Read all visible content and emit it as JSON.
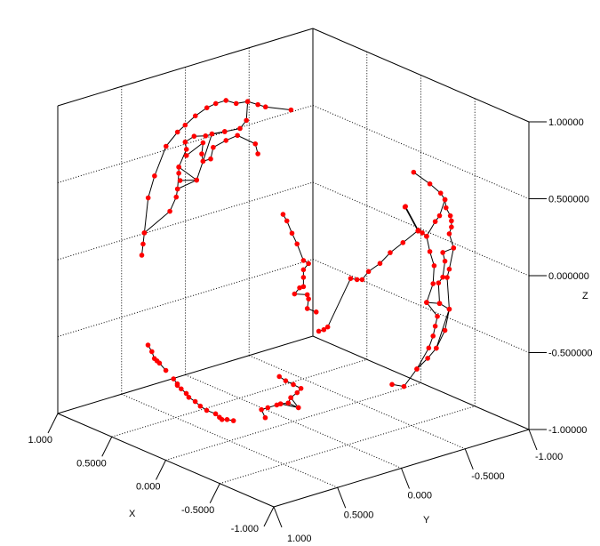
{
  "chart_data": {
    "type": "scatter",
    "projection": "3d",
    "marker_color": "#ff0000",
    "line_color": "#000000",
    "grid": true,
    "xlabel": "X",
    "ylabel": "Y",
    "zlabel": "Z",
    "xlim": [
      -1,
      1
    ],
    "ylim": [
      -1,
      1
    ],
    "zlim": [
      -1,
      1
    ],
    "x_ticks": [
      {
        "value": 1,
        "label": "1.000"
      },
      {
        "value": 0.5,
        "label": "0.5000"
      },
      {
        "value": 0,
        "label": "0.000"
      },
      {
        "value": -0.5,
        "label": "-0.5000"
      },
      {
        "value": -1,
        "label": "-1.000"
      }
    ],
    "y_ticks": [
      {
        "value": 1,
        "label": "1.000"
      },
      {
        "value": 0.5,
        "label": "0.5000"
      },
      {
        "value": 0,
        "label": "0.000"
      },
      {
        "value": -0.5,
        "label": "-0.5000"
      },
      {
        "value": -1,
        "label": "-1.000"
      }
    ],
    "z_ticks": [
      {
        "value": 1,
        "label": "1.00000"
      },
      {
        "value": 0.5,
        "label": "0.500000"
      },
      {
        "value": 0,
        "label": "0.000000"
      },
      {
        "value": -0.5,
        "label": "-0.500000"
      },
      {
        "value": -1,
        "label": "-1.00000"
      }
    ],
    "polylines": [
      [
        [
          0.6,
          0.68,
          0.07
        ],
        [
          0.6,
          0.67,
          0.14
        ],
        [
          0.6,
          0.66,
          0.21
        ],
        [
          0.6,
          0.63,
          0.43
        ],
        [
          0.6,
          0.58,
          0.56
        ],
        [
          0.6,
          0.49,
          0.73
        ],
        [
          0.6,
          0.4,
          0.8
        ],
        [
          0.6,
          0.34,
          0.83
        ],
        [
          0.6,
          0.26,
          0.87
        ],
        [
          0.6,
          0.17,
          0.9
        ],
        [
          0.6,
          0.1,
          0.91
        ],
        [
          0.6,
          0.02,
          0.91
        ],
        [
          0.6,
          -0.06,
          0.87
        ],
        [
          0.6,
          -0.15,
          0.86
        ],
        [
          0.6,
          -0.23,
          0.82
        ],
        [
          0.6,
          -0.29,
          0.79
        ],
        [
          0.6,
          -0.49,
          0.72
        ]
      ],
      [
        [
          0.6,
          0.66,
          0.21
        ],
        [
          0.6,
          0.46,
          0.3
        ],
        [
          0.6,
          0.41,
          0.38
        ],
        [
          0.6,
          0.4,
          0.43
        ],
        [
          0.6,
          0.39,
          0.53
        ],
        [
          0.6,
          0.39,
          0.57
        ],
        [
          0.6,
          0.33,
          0.67
        ],
        [
          0.6,
          0.34,
          0.72
        ],
        [
          0.6,
          0.27,
          0.74
        ],
        [
          0.6,
          0.18,
          0.72
        ],
        [
          0.6,
          0.03,
          0.71
        ],
        [
          0.6,
          -0.09,
          0.7
        ],
        [
          0.6,
          -0.14,
          0.74
        ],
        [
          0.6,
          -0.15,
          0.86
        ]
      ],
      [
        [
          0.6,
          0.38,
          0.48
        ],
        [
          0.6,
          0.25,
          0.45
        ],
        [
          0.6,
          0.2,
          0.56
        ],
        [
          0.6,
          0.14,
          0.56
        ],
        [
          0.6,
          0.12,
          0.63
        ],
        [
          0.6,
          0.02,
          0.65
        ],
        [
          0.6,
          -0.07,
          0.66
        ],
        [
          0.6,
          -0.21,
          0.57
        ],
        [
          0.6,
          -0.23,
          0.5
        ]
      ],
      [
        [
          0.6,
          0.33,
          0.63
        ],
        [
          0.6,
          0.2,
          0.68
        ],
        [
          0.6,
          0.21,
          0.61
        ],
        [
          0.6,
          0.2,
          0.56
        ],
        [
          0.6,
          0.13,
          0.72
        ],
        [
          0.6,
          0.03,
          0.71
        ]
      ],
      [
        [
          0.6,
          0.4,
          0.43
        ],
        [
          0.6,
          0.25,
          0.45
        ],
        [
          0.6,
          0.39,
          0.57
        ]
      ],
      [
        [
          -0.11,
          -0.85,
          0.44
        ],
        [
          -0.26,
          -0.85,
          0.41
        ],
        [
          -0.36,
          -0.85,
          0.38
        ],
        [
          -0.4,
          -0.85,
          0.35
        ],
        [
          -0.41,
          -0.85,
          0.3
        ],
        [
          -0.45,
          -0.85,
          0.26
        ],
        [
          -0.46,
          -0.85,
          0.23
        ],
        [
          -0.46,
          -0.85,
          0.19
        ],
        [
          -0.44,
          -0.85,
          0.14
        ],
        [
          -0.48,
          -0.85,
          0.06
        ],
        [
          -0.44,
          -0.85,
          -0.09
        ],
        [
          -0.42,
          -0.85,
          -0.15
        ],
        [
          -0.44,
          -0.85,
          -0.35
        ],
        [
          -0.4,
          -0.85,
          -0.5
        ],
        [
          -0.32,
          -0.85,
          -0.64
        ],
        [
          -0.24,
          -0.85,
          -0.73
        ],
        [
          -0.14,
          -0.85,
          -0.83
        ],
        [
          -0.02,
          -0.85,
          -0.98
        ],
        [
          0.09,
          -0.85,
          -1.0
        ]
      ],
      [
        [
          -0.03,
          -0.85,
          0.19
        ],
        [
          -0.15,
          -0.85,
          0.07
        ],
        [
          -0.19,
          -0.85,
          0.07
        ],
        [
          -0.23,
          -0.85,
          0.06
        ],
        [
          -0.26,
          -0.85,
          -0.03
        ],
        [
          -0.3,
          -0.85,
          -0.11
        ],
        [
          -0.29,
          -0.85,
          -0.23
        ],
        [
          -0.23,
          -0.85,
          -0.37
        ],
        [
          -0.33,
          -0.85,
          -0.43
        ],
        [
          -0.31,
          -0.85,
          -0.5
        ],
        [
          -0.29,
          -0.85,
          -0.57
        ],
        [
          -0.25,
          -0.85,
          -0.66
        ],
        [
          -0.14,
          -0.85,
          -0.83
        ]
      ],
      [
        [
          -0.23,
          -0.85,
          0.06
        ],
        [
          -0.31,
          -0.85,
          0.18
        ],
        [
          -0.35,
          -0.85,
          0.23
        ],
        [
          -0.4,
          -0.85,
          0.35
        ]
      ],
      [
        [
          -0.48,
          -0.85,
          0.06
        ],
        [
          -0.38,
          -0.85,
          0.0
        ],
        [
          -0.4,
          -0.85,
          -0.05
        ],
        [
          -0.38,
          -0.85,
          -0.16
        ],
        [
          -0.34,
          -0.85,
          -0.21
        ],
        [
          -0.35,
          -0.85,
          -0.34
        ],
        [
          -0.44,
          -0.85,
          -0.35
        ],
        [
          -0.32,
          -0.85,
          -0.64
        ]
      ],
      [
        [
          -0.23,
          -0.85,
          -0.37
        ],
        [
          -0.35,
          -0.85,
          -0.34
        ]
      ],
      [
        [
          -0.2,
          0.25,
          0.47
        ],
        [
          -0.2,
          0.22,
          0.42
        ],
        [
          -0.2,
          0.18,
          0.33
        ],
        [
          -0.2,
          0.14,
          0.25
        ],
        [
          -0.2,
          0.09,
          0.13
        ],
        [
          -0.2,
          0.05,
          0.1
        ],
        [
          -0.2,
          0.09,
          0.07
        ],
        [
          -0.2,
          0.09,
          0.02
        ],
        [
          -0.2,
          0.09,
          -0.04
        ],
        [
          -0.2,
          0.12,
          -0.04
        ],
        [
          -0.2,
          0.16,
          -0.07
        ],
        [
          -0.2,
          0.06,
          -0.1
        ],
        [
          -0.2,
          0.05,
          -0.13
        ],
        [
          -0.2,
          0.06,
          -0.19
        ],
        [
          -0.2,
          -0.01,
          -0.23
        ]
      ],
      [
        [
          -0.2,
          -0.71,
          0.28
        ],
        [
          -0.2,
          -0.81,
          0.1
        ],
        [
          -0.2,
          -0.69,
          0.05
        ],
        [
          -0.2,
          -0.59,
          0.01
        ],
        [
          -0.2,
          -0.51,
          -0.04
        ],
        [
          -0.2,
          -0.42,
          -0.07
        ],
        [
          -0.2,
          -0.37,
          -0.11
        ],
        [
          -0.2,
          -0.33,
          -0.1
        ],
        [
          -0.2,
          -0.28,
          -0.08
        ],
        [
          -0.2,
          -0.1,
          -0.35
        ],
        [
          -0.2,
          -0.07,
          -0.36
        ],
        [
          -0.2,
          -0.03,
          -0.36
        ]
      ],
      [
        [
          0.2,
          0.97,
          -0.32
        ],
        [
          0.2,
          0.94,
          -0.37
        ],
        [
          0.2,
          0.92,
          -0.42
        ],
        [
          0.2,
          0.9,
          -0.44
        ],
        [
          0.2,
          0.88,
          -0.46
        ],
        [
          0.2,
          0.83,
          -0.52
        ]
      ],
      [
        [
          0.2,
          0.77,
          -0.59
        ],
        [
          0.2,
          0.74,
          -0.63
        ],
        [
          0.2,
          0.74,
          -0.64
        ],
        [
          0.2,
          0.71,
          -0.67
        ],
        [
          0.2,
          0.67,
          -0.71
        ],
        [
          0.2,
          0.65,
          -0.74
        ],
        [
          0.2,
          0.6,
          -0.78
        ],
        [
          0.2,
          0.56,
          -0.82
        ],
        [
          0.2,
          0.51,
          -0.86
        ],
        [
          0.2,
          0.44,
          -0.9
        ],
        [
          0.2,
          0.41,
          -0.93
        ],
        [
          0.2,
          0.39,
          -0.95
        ],
        [
          0.2,
          0.35,
          -0.96
        ],
        [
          0.2,
          0.3,
          -0.98
        ]
      ],
      [
        [
          0,
          0.11,
          -0.68
        ],
        [
          0,
          0.06,
          -0.72
        ],
        [
          0,
          0.0,
          -0.76
        ],
        [
          0,
          -0.06,
          -0.8
        ],
        [
          0,
          -0.03,
          -0.82
        ],
        [
          0,
          0.02,
          -0.84
        ],
        [
          0,
          0.04,
          -0.87
        ],
        [
          0,
          0.1,
          -0.86
        ],
        [
          0,
          0.13,
          -0.86
        ],
        [
          0,
          0.2,
          -0.86
        ],
        [
          0,
          0.25,
          -0.86
        ],
        [
          0,
          0.22,
          -0.92
        ]
      ],
      [
        [
          0,
          0.02,
          -0.84
        ],
        [
          0,
          -0.04,
          -0.92
        ],
        [
          0,
          0.1,
          -0.86
        ]
      ],
      [
        [
          0,
          0.04,
          -0.87
        ],
        [
          0,
          -0.04,
          -0.92
        ]
      ]
    ]
  }
}
